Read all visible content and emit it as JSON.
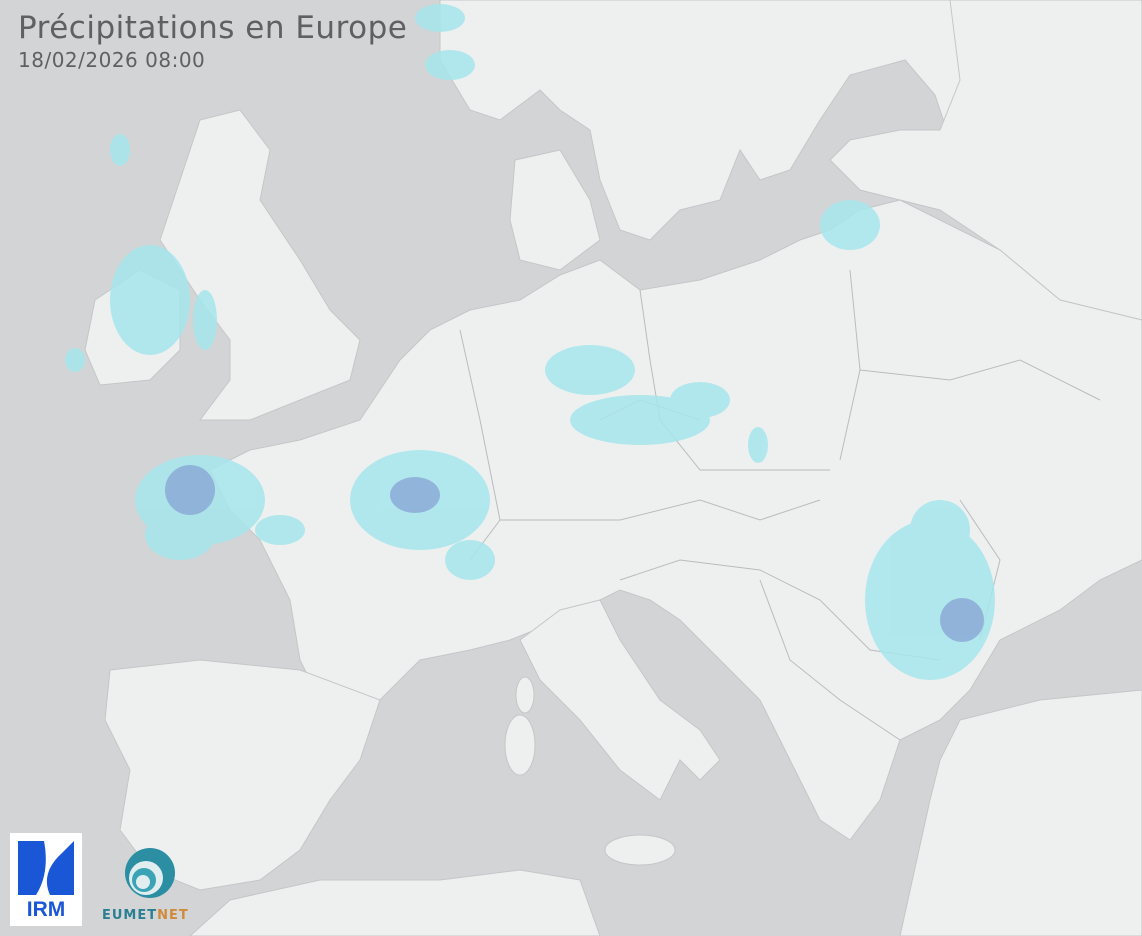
{
  "header": {
    "title": "Précipitations en Europe",
    "datetime": "18/02/2026 08:00"
  },
  "logos": {
    "irm": "IRM",
    "eumetnet_a": "EUMET",
    "eumetnet_b": "NET"
  },
  "colors": {
    "sea": "#d2d4d5",
    "land": "#eef0f0",
    "borders": "#b8babc",
    "precip_light": "#a6e6ec",
    "precip_moderate": "#8aa6d6"
  }
}
